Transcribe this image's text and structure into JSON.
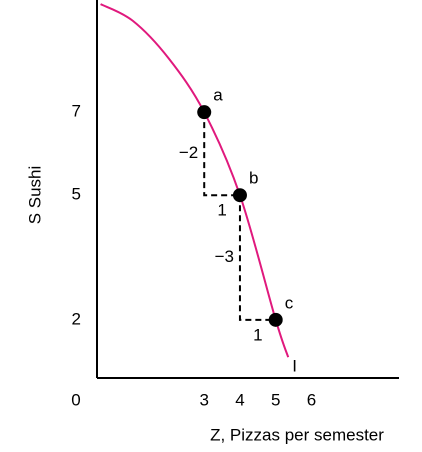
{
  "chart_data": {
    "type": "line",
    "x_label": "Z,  Pizzas per semester",
    "y_label": "S Sushi",
    "xlim": [
      0,
      8.45
    ],
    "ylim": [
      0.6,
      9.7
    ],
    "xticks": [
      0,
      3,
      4,
      5,
      6
    ],
    "yticks": [
      2,
      5,
      7
    ],
    "series": [
      {
        "name": "I",
        "color": "#e0197d",
        "x": [
          0.1,
          1,
          2,
          3,
          4,
          5,
          5.35
        ],
        "values": [
          9.6,
          9.2,
          8.3,
          7,
          5,
          2,
          1.1
        ]
      }
    ],
    "points": [
      {
        "label": "a",
        "x": 3,
        "y": 7
      },
      {
        "label": "b",
        "x": 4,
        "y": 5
      },
      {
        "label": "c",
        "x": 5,
        "y": 2
      }
    ],
    "steps": [
      {
        "rise": "−2",
        "run": "1"
      },
      {
        "rise": "−3",
        "run": "1"
      }
    ]
  }
}
